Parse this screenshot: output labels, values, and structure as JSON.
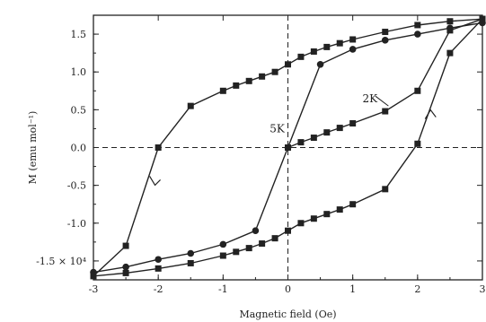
{
  "chart_data": {
    "type": "line",
    "xlabel": "Magnetic field (Oe)",
    "ylabel": "M (emu mol⁻¹)",
    "xlim": [
      -3,
      3
    ],
    "ylim": [
      -1.75,
      1.75
    ],
    "x_ticks": [
      -3,
      -2,
      -1,
      0,
      1,
      2,
      3
    ],
    "x_tick_labels": [
      "-3",
      "-2",
      "-1",
      "0",
      "1",
      "2",
      "3"
    ],
    "y_ticks": [
      1.5,
      1.0,
      0.5,
      0.0,
      -0.5,
      -1.0,
      -1.5
    ],
    "y_tick_labels": [
      "1.5",
      "1.0",
      "0.5",
      "0.0",
      "-0.5",
      "-1.0",
      "-1.5 × 10⁴"
    ],
    "zero_lines": "dashed",
    "grid": false,
    "series": [
      {
        "name": "2K",
        "marker": "square",
        "branches": [
          {
            "x": [
              -3,
              -2.5,
              -2.0,
              -1.5,
              -1.0,
              -0.8,
              -0.6,
              -0.4,
              -0.2,
              0,
              0.2,
              0.4,
              0.6,
              0.8,
              1.0,
              1.5,
              2.0,
              2.5,
              3.0
            ],
            "y": [
              -1.7,
              -1.3,
              0.0,
              0.55,
              0.75,
              0.82,
              0.88,
              0.94,
              1.0,
              1.1,
              1.2,
              1.27,
              1.33,
              1.38,
              1.43,
              1.53,
              1.62,
              1.67,
              1.7
            ]
          },
          {
            "x": [
              3.0,
              2.5,
              2.0,
              1.5,
              1.0,
              0.8,
              0.6,
              0.4,
              0.2,
              0,
              -0.2,
              -0.4,
              -0.6,
              -0.8,
              -1.0,
              -1.5,
              -2.0,
              -2.5,
              -3.0
            ],
            "y": [
              1.7,
              1.25,
              0.05,
              -0.55,
              -0.75,
              -0.82,
              -0.88,
              -0.94,
              -1.0,
              -1.1,
              -1.2,
              -1.27,
              -1.33,
              -1.38,
              -1.43,
              -1.53,
              -1.6,
              -1.66,
              -1.7
            ]
          },
          {
            "x": [
              0,
              0.2,
              0.4,
              0.6,
              0.8,
              1.0,
              1.5,
              2.0,
              2.5,
              3.0
            ],
            "y": [
              0.0,
              0.07,
              0.13,
              0.2,
              0.26,
              0.32,
              0.48,
              0.75,
              1.55,
              1.7
            ]
          }
        ]
      },
      {
        "name": "5K",
        "marker": "circle",
        "branches": [
          {
            "x": [
              -3,
              -2.5,
              -2.0,
              -1.5,
              -1.0,
              -0.5,
              0.0,
              0.5,
              1.0,
              1.5,
              2.0,
              2.5,
              3.0
            ],
            "y": [
              -1.65,
              -1.58,
              -1.48,
              -1.4,
              -1.28,
              -1.1,
              0.0,
              1.1,
              1.3,
              1.42,
              1.5,
              1.58,
              1.65
            ]
          }
        ]
      }
    ],
    "annotations": [
      {
        "text": "2K",
        "x": 1.15,
        "y": 0.6
      },
      {
        "text": "5K",
        "x": -0.28,
        "y": 0.2
      }
    ]
  }
}
